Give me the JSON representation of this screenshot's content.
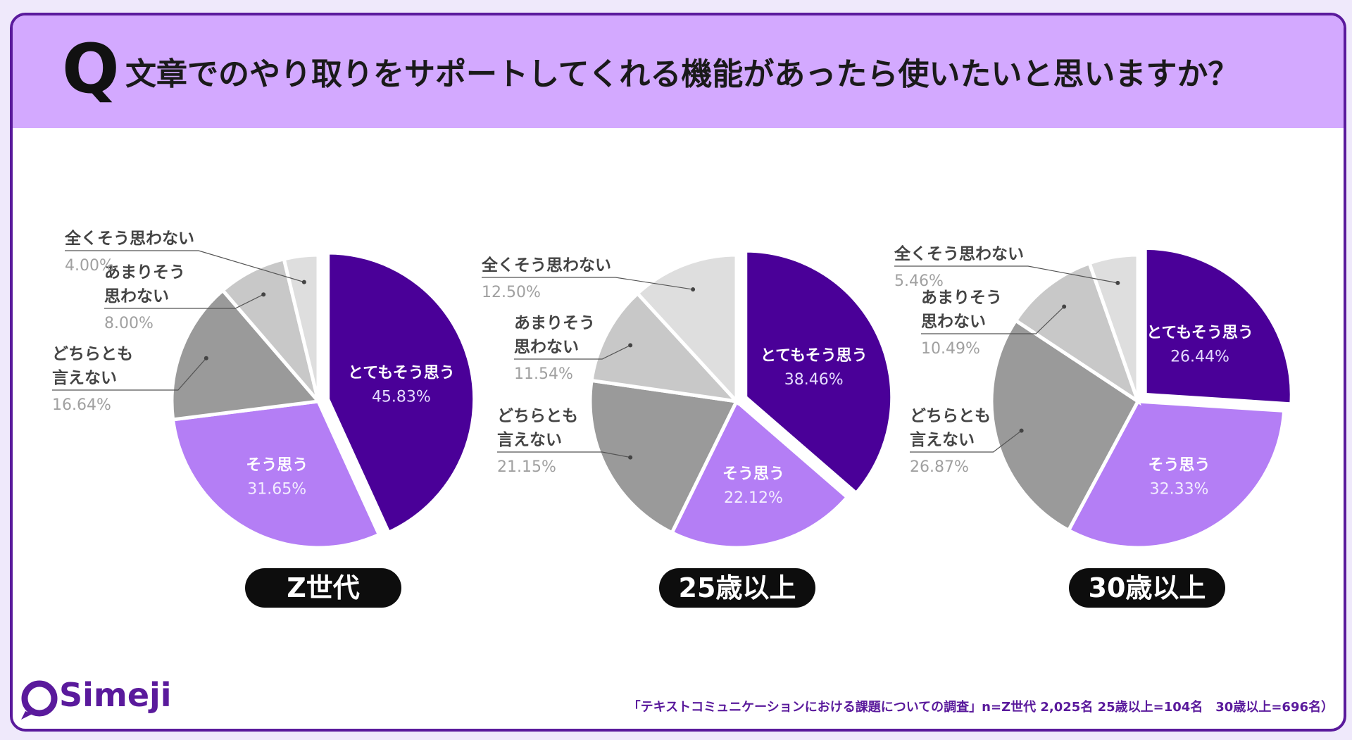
{
  "header": {
    "q_mark": "Q",
    "question": "文章でのやり取りをサポートしてくれる機能があったら使いたいと思いますか？"
  },
  "colors": {
    "frame": "#5a1a9c",
    "header_bg": "#d3a9ff",
    "slice_strong_yes": "#4a0098",
    "slice_yes": "#b47ef5",
    "slice_neutral": "#9a9a9a",
    "slice_not_really": "#c8c8c8",
    "slice_not_at_all": "#dedede"
  },
  "chart_data": [
    {
      "type": "pie",
      "title": "Z世代",
      "slices": [
        {
          "label": "とてもそう思う",
          "value": 45.83,
          "display": "45.83%"
        },
        {
          "label": "そう思う",
          "value": 31.65,
          "display": "31.65%"
        },
        {
          "label": "どちらとも\n言えない",
          "value": 16.64,
          "display": "16.64%"
        },
        {
          "label": "あまりそう\n思わない",
          "value": 8.0,
          "display": "8.00%"
        },
        {
          "label": "全くそう思わない",
          "value": 4.0,
          "display": "4.00%"
        }
      ]
    },
    {
      "type": "pie",
      "title": "25歳以上",
      "slices": [
        {
          "label": "とてもそう思う",
          "value": 38.46,
          "display": "38.46%"
        },
        {
          "label": "そう思う",
          "value": 22.12,
          "display": "22.12%"
        },
        {
          "label": "どちらとも\n言えない",
          "value": 21.15,
          "display": "21.15%"
        },
        {
          "label": "あまりそう\n思わない",
          "value": 11.54,
          "display": "11.54%"
        },
        {
          "label": "全くそう思わない",
          "value": 12.5,
          "display": "12.50%"
        }
      ]
    },
    {
      "type": "pie",
      "title": "30歳以上",
      "slices": [
        {
          "label": "とてもそう思う",
          "value": 26.44,
          "display": "26.44%"
        },
        {
          "label": "そう思う",
          "value": 32.33,
          "display": "32.33%"
        },
        {
          "label": "どちらとも\n言えない",
          "value": 26.87,
          "display": "26.87%"
        },
        {
          "label": "あまりそう\n思わない",
          "value": 10.49,
          "display": "10.49%"
        },
        {
          "label": "全くそう思わない",
          "value": 5.46,
          "display": "5.46%"
        }
      ]
    }
  ],
  "logo": {
    "text": "Simeji"
  },
  "source": "「テキストコミュニケーションにおける課題についての調査」n=Z世代 2,025名 25歳以上=104名　30歳以上=696名）"
}
